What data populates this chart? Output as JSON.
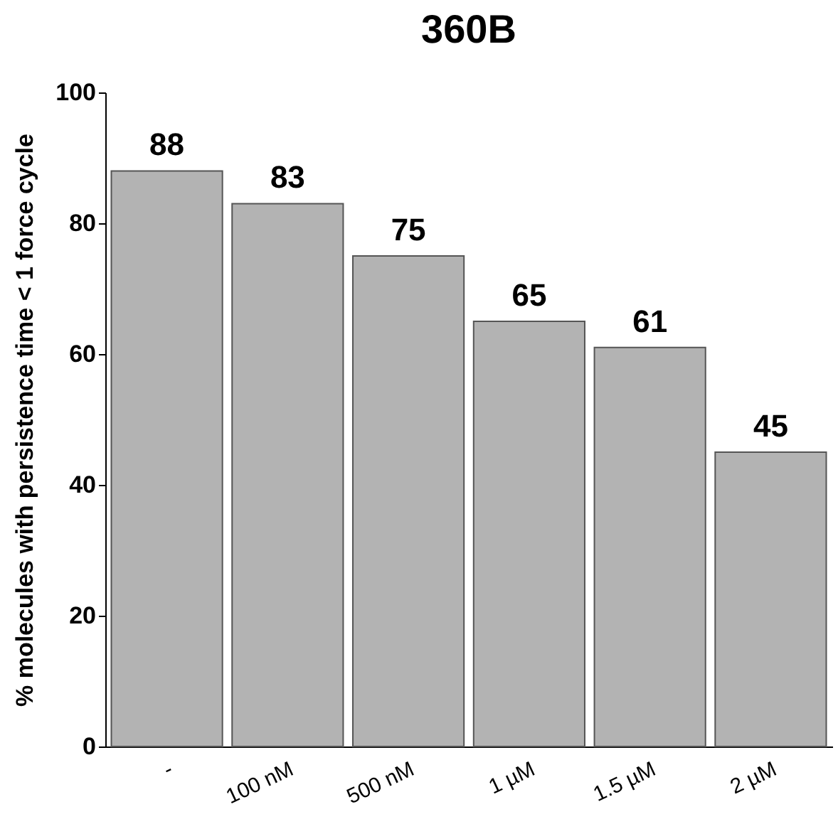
{
  "chart_data": {
    "type": "bar",
    "title": "360B",
    "ylabel": "% molecules with persistence time < 1 force cycle",
    "categories": [
      "-",
      "100 nM",
      "500 nM",
      "1 µM",
      "1.5 µM",
      "2 µM"
    ],
    "values": [
      88,
      83,
      75,
      65,
      61,
      45
    ],
    "color": "#b3b3b3",
    "ylim": [
      0,
      100
    ],
    "yticks": [
      0,
      20,
      40,
      60,
      80,
      100
    ],
    "grid": false,
    "data_labels": true
  }
}
